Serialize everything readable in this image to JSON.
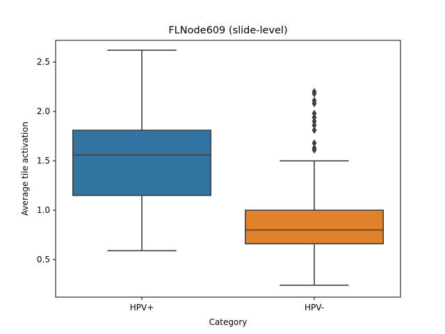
{
  "chart_data": {
    "type": "boxplot",
    "title": "FLNode609 (slide-level)",
    "xlabel": "Category",
    "ylabel": "Average tile activation",
    "categories": [
      "HPV+",
      "HPV-"
    ],
    "ylim": [
      0.12,
      2.72
    ],
    "yticks": [
      0.5,
      1.0,
      1.5,
      2.0,
      2.5
    ],
    "ytick_labels": [
      "0.5",
      "1.0",
      "1.5",
      "2.0",
      "2.5"
    ],
    "grid": false,
    "boxes": [
      {
        "category": "HPV+",
        "color": "#3274a1",
        "whisker_low": 0.59,
        "q1": 1.15,
        "median": 1.56,
        "q3": 1.81,
        "whisker_high": 2.62,
        "outliers": []
      },
      {
        "category": "HPV-",
        "color": "#e1812c",
        "whisker_low": 0.24,
        "q1": 0.66,
        "median": 0.8,
        "q3": 1.0,
        "whisker_high": 1.5,
        "outliers": [
          1.61,
          1.63,
          1.68,
          1.81,
          1.86,
          1.9,
          1.94,
          1.98,
          2.08,
          2.11,
          2.18,
          2.2
        ]
      }
    ]
  }
}
